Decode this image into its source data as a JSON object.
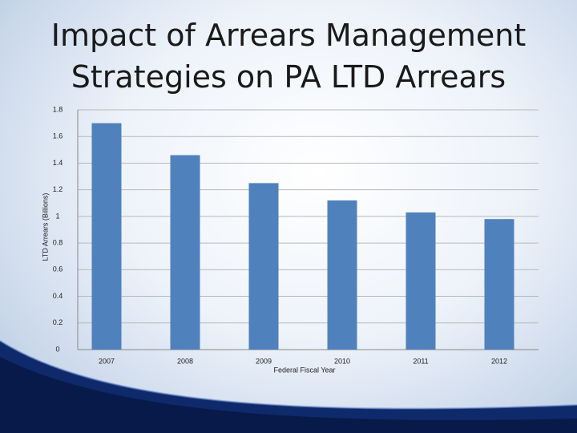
{
  "chart_data": {
    "type": "bar",
    "title": "Impact of Arrears Management Strategies on PA LTD Arrears",
    "x_label": "Federal Fiscal Year",
    "y_label": "LTD Arrears (Billions)",
    "categories": [
      "2007",
      "2008",
      "2009",
      "2010",
      "2011",
      "2012"
    ],
    "values": [
      1.7,
      1.46,
      1.25,
      1.12,
      1.03,
      0.98
    ],
    "color": "#4f81bd",
    "ylim": [
      0,
      1.8
    ],
    "yticks": [
      0,
      0.2,
      0.4,
      0.6,
      0.8,
      1,
      1.2,
      1.4,
      1.6,
      1.8
    ],
    "grid": true
  }
}
